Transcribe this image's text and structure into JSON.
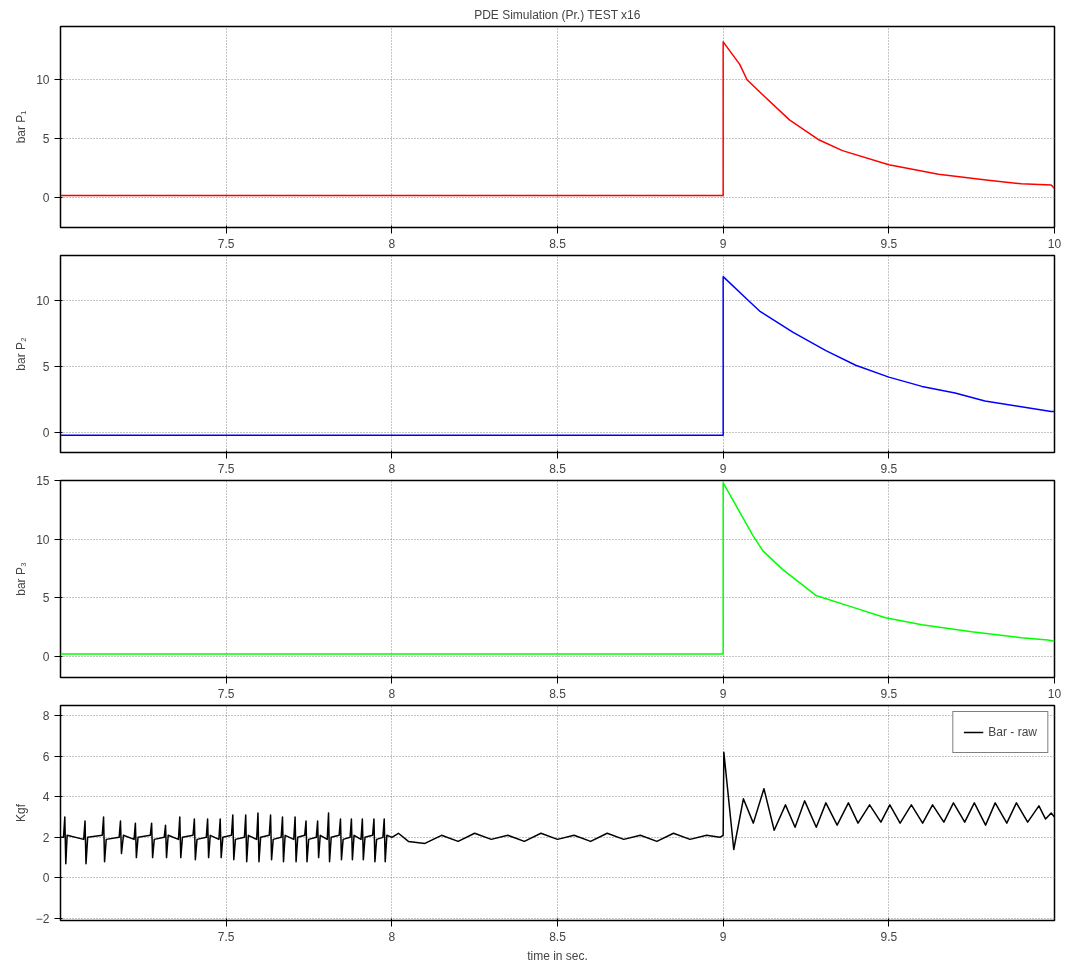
{
  "chart_data": [
    {
      "type": "line",
      "title": "PDE Simulation (Pr.) TEST x16",
      "ylabel": "bar P₁",
      "xlim": [
        7,
        10
      ],
      "ylim": [
        -2.5,
        14.5
      ],
      "xticks": [
        7.5,
        8,
        8.5,
        9,
        9.5,
        10
      ],
      "yticks": [
        0,
        5,
        10
      ],
      "grid": true,
      "series": [
        {
          "color": "#ff0000",
          "x": [
            7,
            8,
            9,
            9,
            9.05,
            9.072,
            9.12,
            9.2,
            9.29,
            9.36,
            9.5,
            9.65,
            9.8,
            9.9,
            9.99,
            10
          ],
          "values": [
            0.2,
            0.2,
            0.2,
            13.2,
            11.3,
            10.0,
            8.7,
            6.6,
            4.9,
            4.0,
            2.8,
            2.0,
            1.5,
            1.2,
            1.1,
            0.8
          ]
        }
      ]
    },
    {
      "type": "line",
      "ylabel": "bar P₂",
      "xlim": [
        7,
        10
      ],
      "ylim": [
        -1.5,
        13.4
      ],
      "xticks": [
        7.5,
        8,
        8.5,
        9,
        9.5
      ],
      "yticks": [
        0,
        5,
        10
      ],
      "grid": true,
      "series": [
        {
          "color": "#0000ff",
          "x": [
            7,
            8,
            9,
            9,
            9.08,
            9.11,
            9.21,
            9.31,
            9.4,
            9.5,
            9.6,
            9.7,
            9.79,
            9.89,
            9.99,
            10
          ],
          "values": [
            -0.2,
            -0.2,
            -0.2,
            11.8,
            9.9,
            9.2,
            7.6,
            6.2,
            5.1,
            4.2,
            3.5,
            3.0,
            2.4,
            2.0,
            1.6,
            1.6
          ]
        }
      ]
    },
    {
      "type": "line",
      "ylabel": "bar P₃",
      "xlim": [
        7,
        10
      ],
      "ylim": [
        -1.8,
        15
      ],
      "xticks": [
        7.5,
        8,
        8.5,
        9,
        9.5,
        10
      ],
      "yticks": [
        0,
        5,
        10,
        15
      ],
      "grid": true,
      "series": [
        {
          "color": "#00ff00",
          "x": [
            7,
            8,
            9,
            9,
            9.03,
            9.09,
            9.12,
            9.18,
            9.28,
            9.39,
            9.49,
            9.6,
            9.75,
            9.9,
            9.98,
            10
          ],
          "values": [
            0.2,
            0.2,
            0.2,
            14.8,
            13.3,
            10.3,
            9.0,
            7.4,
            5.2,
            4.2,
            3.3,
            2.7,
            2.1,
            1.6,
            1.4,
            1.3
          ]
        }
      ]
    },
    {
      "type": "line",
      "ylabel": "Kgf",
      "xlabel": "time in sec.",
      "xlim": [
        7,
        10
      ],
      "ylim": [
        -2.1,
        8.5
      ],
      "xticks": [
        7.5,
        8,
        8.5,
        9,
        9.5
      ],
      "yticks": [
        -2,
        0,
        2,
        4,
        6,
        8
      ],
      "grid": true,
      "legend": "top right",
      "series": [
        {
          "name": "Bar - raw",
          "color": "#000000",
          "x": [
            7.0,
            7.009,
            7.013,
            7.016,
            7.02,
            7.07,
            7.074,
            7.077,
            7.082,
            7.126,
            7.13,
            7.133,
            7.138,
            7.177,
            7.181,
            7.184,
            7.19,
            7.222,
            7.226,
            7.229,
            7.234,
            7.271,
            7.275,
            7.278,
            7.283,
            7.313,
            7.317,
            7.32,
            7.325,
            7.356,
            7.36,
            7.363,
            7.368,
            7.4,
            7.404,
            7.407,
            7.412,
            7.44,
            7.444,
            7.447,
            7.452,
            7.478,
            7.482,
            7.485,
            7.49,
            7.516,
            7.52,
            7.523,
            7.528,
            7.555,
            7.559,
            7.562,
            7.567,
            7.592,
            7.596,
            7.599,
            7.604,
            7.63,
            7.634,
            7.637,
            7.642,
            7.666,
            7.67,
            7.673,
            7.678,
            7.704,
            7.708,
            7.711,
            7.716,
            7.737,
            7.741,
            7.744,
            7.749,
            7.772,
            7.776,
            7.779,
            7.784,
            7.805,
            7.809,
            7.812,
            7.817,
            7.841,
            7.845,
            7.848,
            7.853,
            7.874,
            7.878,
            7.881,
            7.886,
            7.907,
            7.911,
            7.914,
            7.919,
            7.942,
            7.946,
            7.949,
            7.954,
            7.973,
            7.977,
            7.98,
            7.985,
            8.0,
            8.02,
            8.05,
            8.1,
            8.15,
            8.2,
            8.25,
            8.3,
            8.35,
            8.4,
            8.45,
            8.5,
            8.55,
            8.6,
            8.65,
            8.7,
            8.75,
            8.8,
            8.85,
            8.9,
            8.95,
            8.99,
            9.0,
            9.002,
            9.032,
            9.061,
            9.091,
            9.123,
            9.154,
            9.188,
            9.217,
            9.246,
            9.281,
            9.31,
            9.344,
            9.378,
            9.407,
            9.442,
            9.476,
            9.503,
            9.534,
            9.568,
            9.602,
            9.632,
            9.666,
            9.695,
            9.729,
            9.758,
            9.792,
            9.821,
            9.856,
            9.885,
            9.919,
            9.953,
            9.973,
            9.99,
            10.0
          ],
          "values": [
            2.0,
            2.0,
            3.0,
            0.7,
            2.1,
            1.9,
            2.8,
            0.7,
            2.0,
            2.1,
            3.0,
            0.8,
            1.9,
            2.0,
            2.8,
            1.2,
            2.1,
            1.9,
            2.7,
            1.0,
            2.0,
            2.1,
            2.7,
            1.0,
            1.9,
            2.0,
            2.6,
            1.0,
            2.1,
            1.9,
            3.0,
            1.0,
            2.0,
            2.1,
            2.9,
            0.9,
            1.9,
            2.0,
            2.9,
            1.0,
            2.1,
            1.9,
            2.9,
            1.0,
            2.0,
            2.1,
            3.1,
            0.9,
            1.9,
            2.0,
            3.1,
            0.8,
            2.1,
            1.9,
            3.2,
            0.8,
            2.0,
            2.1,
            3.1,
            0.9,
            1.9,
            2.0,
            3.0,
            0.8,
            2.1,
            1.9,
            3.0,
            0.8,
            2.0,
            2.1,
            2.8,
            0.8,
            1.9,
            2.0,
            2.8,
            1.0,
            2.1,
            1.9,
            3.2,
            0.8,
            2.0,
            2.1,
            2.9,
            0.9,
            1.9,
            2.0,
            2.9,
            0.9,
            2.1,
            1.9,
            2.9,
            0.9,
            2.0,
            2.1,
            2.9,
            0.8,
            1.9,
            2.0,
            2.9,
            0.8,
            2.1,
            2.0,
            2.2,
            1.8,
            1.7,
            2.1,
            1.8,
            2.2,
            1.9,
            2.1,
            1.8,
            2.2,
            1.9,
            2.1,
            1.8,
            2.2,
            1.9,
            2.1,
            1.8,
            2.2,
            1.9,
            2.1,
            2.0,
            2.1,
            6.2,
            1.4,
            3.9,
            2.7,
            4.4,
            2.35,
            3.6,
            2.5,
            3.8,
            2.5,
            3.7,
            2.6,
            3.7,
            2.7,
            3.6,
            2.75,
            3.6,
            2.7,
            3.6,
            2.7,
            3.6,
            2.75,
            3.7,
            2.75,
            3.7,
            2.6,
            3.7,
            2.7,
            3.7,
            2.75,
            3.55,
            2.9,
            3.2,
            3.0
          ]
        }
      ]
    }
  ]
}
